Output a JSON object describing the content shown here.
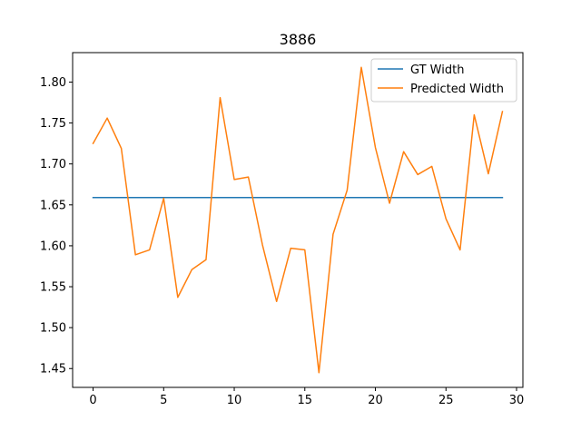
{
  "chart_data": {
    "type": "line",
    "title": "3886",
    "xlabel": "",
    "ylabel": "",
    "xlim": [
      -1.45,
      30.45
    ],
    "ylim": [
      1.427,
      1.836
    ],
    "xticks": [
      0,
      5,
      10,
      15,
      20,
      25,
      30
    ],
    "yticks": [
      1.45,
      1.5,
      1.55,
      1.6,
      1.65,
      1.7,
      1.75,
      1.8
    ],
    "ytick_labels": [
      "1.45",
      "1.50",
      "1.55",
      "1.60",
      "1.65",
      "1.70",
      "1.75",
      "1.80"
    ],
    "legend_position": "upper right",
    "grid": false,
    "x": [
      0,
      1,
      2,
      3,
      4,
      5,
      6,
      7,
      8,
      9,
      10,
      11,
      12,
      13,
      14,
      15,
      16,
      17,
      18,
      19,
      20,
      21,
      22,
      23,
      24,
      25,
      26,
      27,
      28,
      29
    ],
    "series": [
      {
        "name": "GT Width",
        "color": "#1f77b4",
        "values": [
          1.659,
          1.659,
          1.659,
          1.659,
          1.659,
          1.659,
          1.659,
          1.659,
          1.659,
          1.659,
          1.659,
          1.659,
          1.659,
          1.659,
          1.659,
          1.659,
          1.659,
          1.659,
          1.659,
          1.659,
          1.659,
          1.659,
          1.659,
          1.659,
          1.659,
          1.659,
          1.659,
          1.659,
          1.659,
          1.659
        ]
      },
      {
        "name": "Predicted Width",
        "color": "#ff7f0e",
        "values": [
          1.725,
          1.756,
          1.719,
          1.589,
          1.595,
          1.658,
          1.537,
          1.571,
          1.583,
          1.781,
          1.681,
          1.684,
          1.601,
          1.532,
          1.597,
          1.595,
          1.445,
          1.614,
          1.668,
          1.818,
          1.72,
          1.652,
          1.715,
          1.687,
          1.697,
          1.633,
          1.595,
          1.76,
          1.688,
          1.764
        ]
      }
    ]
  }
}
